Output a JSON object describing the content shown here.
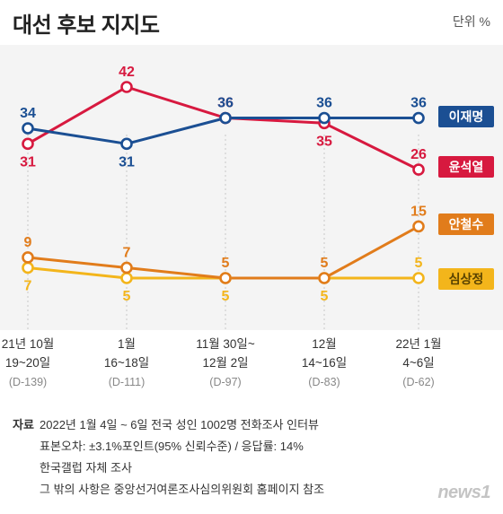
{
  "title": "대선 후보 지지도",
  "unit": "단위 %",
  "chart_data": {
    "type": "line",
    "title": "대선 후보 지지도",
    "unit": "단위 %",
    "categories": [
      {
        "line1": "21년 10월",
        "line2": "19~20일",
        "line3": "(D-139)"
      },
      {
        "line1": "1월",
        "line2": "16~18일",
        "line3": "(D-111)"
      },
      {
        "line1": "11월 30일~",
        "line2": "12월 2일",
        "line3": "(D-97)"
      },
      {
        "line1": "12월",
        "line2": "14~16일",
        "line3": "(D-83)"
      },
      {
        "line1": "22년 1월",
        "line2": "4~6일",
        "line3": "(D-62)"
      }
    ],
    "series": [
      {
        "name": "이재명",
        "values": [
          34,
          31,
          36,
          36,
          36
        ],
        "color": "#1b4f93",
        "label_pos": [
          "above",
          "below",
          "above",
          "above",
          "above"
        ]
      },
      {
        "name": "윤석열",
        "values": [
          31,
          42,
          36,
          35,
          26
        ],
        "color": "#d7193f",
        "label_pos": [
          "below",
          "above",
          "above",
          "below",
          "above"
        ]
      },
      {
        "name": "안철수",
        "values": [
          9,
          7,
          5,
          5,
          15
        ],
        "color": "#e17c1b",
        "label_pos": [
          "above",
          "above",
          "above",
          "above",
          "above"
        ]
      },
      {
        "name": "심상정",
        "values": [
          7,
          5,
          5,
          5,
          5
        ],
        "color": "#f3b51b",
        "label_pos": [
          "below",
          "below",
          "below",
          "below",
          "above"
        ]
      }
    ],
    "legend": "right",
    "grid": false
  },
  "footer": {
    "head": "자료",
    "lines": [
      "2022년 1월 4일 ~ 6일 전국 성인 1002명 전화조사 인터뷰",
      "표본오차: ±3.1%포인트(95% 신뢰수준) / 응답률: 14%",
      "한국갤럽 자체 조사",
      "그 밖의 사항은 중앙선거여론조사심의위원회 홈페이지 참조"
    ]
  },
  "logo": "news1"
}
